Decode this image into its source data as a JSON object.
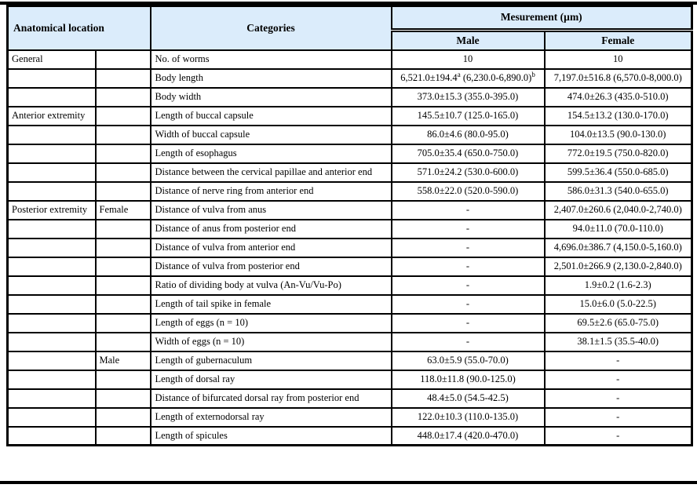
{
  "page": {
    "background": "#ffffff",
    "rule_color": "#000000"
  },
  "table": {
    "header_bg": "#dbecfb",
    "border_color": "#000000",
    "headers": {
      "anatomical_location": "Anatomical location",
      "categories": "Categories",
      "measurement": "Mesurement (µm)",
      "male": "Male",
      "female": "Female"
    },
    "rows": [
      {
        "location": "General",
        "subgroup": "",
        "category": "No. of worms",
        "male": "10",
        "female": "10"
      },
      {
        "location": "",
        "subgroup": "",
        "category": "Body length",
        "male": "6,521.0±194.4^a (6,230.0-6,890.0)^b",
        "female": "7,197.0±516.8 (6,570.0-8,000.0)"
      },
      {
        "location": "",
        "subgroup": "",
        "category": "Body width",
        "male": "373.0±15.3 (355.0-395.0)",
        "female": "474.0±26.3 (435.0-510.0)"
      },
      {
        "location": "Anterior extremity",
        "subgroup": "",
        "category": "Length of buccal capsule",
        "male": "145.5±10.7 (125.0-165.0)",
        "female": "154.5±13.2 (130.0-170.0)"
      },
      {
        "location": "",
        "subgroup": "",
        "category": "Width of buccal capsule",
        "male": "86.0±4.6 (80.0-95.0)",
        "female": "104.0±13.5 (90.0-130.0)"
      },
      {
        "location": "",
        "subgroup": "",
        "category": "Length of esophagus",
        "male": "705.0±35.4 (650.0-750.0)",
        "female": "772.0±19.5 (750.0-820.0)"
      },
      {
        "location": "",
        "subgroup": "",
        "category": "Distance between the cervical papillae and anterior end",
        "male": "571.0±24.2 (530.0-600.0)",
        "female": "599.5±36.4 (550.0-685.0)"
      },
      {
        "location": "",
        "subgroup": "",
        "category": "Distance of nerve ring from anterior end",
        "male": "558.0±22.0 (520.0-590.0)",
        "female": "586.0±31.3 (540.0-655.0)"
      },
      {
        "location": "Posterior extremity",
        "subgroup": "Female",
        "category": "Distance of vulva from anus",
        "male": "-",
        "female": "2,407.0±260.6 (2,040.0-2,740.0)"
      },
      {
        "location": "",
        "subgroup": "",
        "category": "Distance of anus from posterior end",
        "male": "-",
        "female": "94.0±11.0 (70.0-110.0)"
      },
      {
        "location": "",
        "subgroup": "",
        "category": "Distance of vulva from anterior end",
        "male": "-",
        "female": "4,696.0±386.7 (4,150.0-5,160.0)"
      },
      {
        "location": "",
        "subgroup": "",
        "category": "Distance of vulva from posterior end",
        "male": "-",
        "female": "2,501.0±266.9 (2,130.0-2,840.0)"
      },
      {
        "location": "",
        "subgroup": "",
        "category": "Ratio of dividing body at vulva (An-Vu/Vu-Po)",
        "male": "-",
        "female": "1.9±0.2 (1.6-2.3)"
      },
      {
        "location": "",
        "subgroup": "",
        "category": "Length of tail spike in female",
        "male": "-",
        "female": "15.0±6.0 (5.0-22.5)"
      },
      {
        "location": "",
        "subgroup": "",
        "category": "Length of eggs (n = 10)",
        "male": "-",
        "female": "69.5±2.6 (65.0-75.0)"
      },
      {
        "location": "",
        "subgroup": "",
        "category": "Width of eggs (n = 10)",
        "male": "-",
        "female": "38.1±1.5 (35.5-40.0)"
      },
      {
        "location": "",
        "subgroup": "Male",
        "category": "Length of gubernaculum",
        "male": "63.0±5.9 (55.0-70.0)",
        "female": "-"
      },
      {
        "location": "",
        "subgroup": "",
        "category": "Length of dorsal ray",
        "male": "118.0±11.8 (90.0-125.0)",
        "female": "-"
      },
      {
        "location": "",
        "subgroup": "",
        "category": "Distance of bifurcated dorsal ray from posterior end",
        "male": "48.4±5.0 (54.5-42.5)",
        "female": "-"
      },
      {
        "location": "",
        "subgroup": "",
        "category": "Length of externodorsal ray",
        "male": "122.0±10.3 (110.0-135.0)",
        "female": "-"
      },
      {
        "location": "",
        "subgroup": "",
        "category": "Length of spicules",
        "male": "448.0±17.4 (420.0-470.0)",
        "female": "-"
      }
    ]
  }
}
